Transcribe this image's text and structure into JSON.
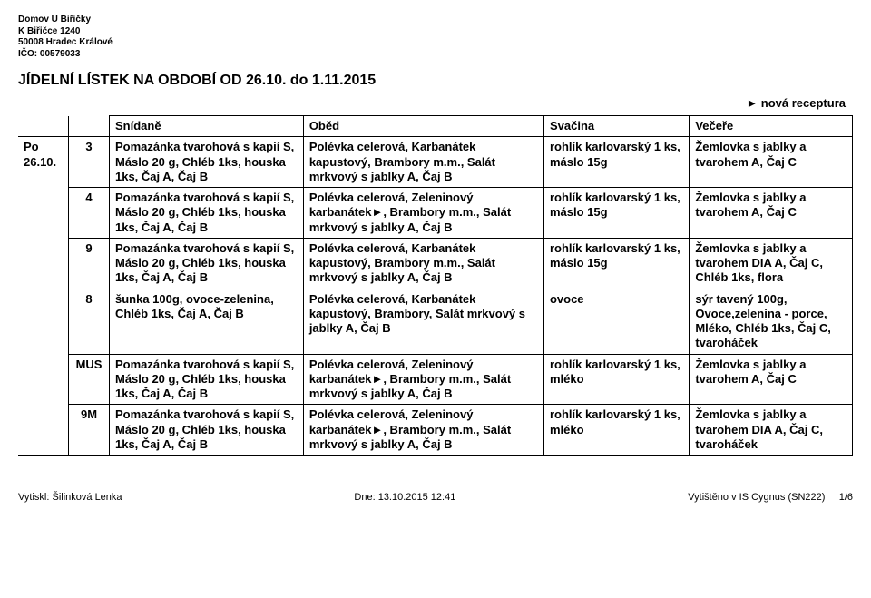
{
  "org": {
    "line1": "Domov U Biřičky",
    "line2": "K Biřičce 1240",
    "line3": "50008 Hradec Králové",
    "line4": "IČO: 00579033"
  },
  "title": "JÍDELNÍ LÍSTEK NA OBDOBÍ OD 26.10. do 1.11.2015",
  "legend": "► nová receptura",
  "headers": {
    "breakfast": "Snídaně",
    "lunch": "Oběd",
    "snack": "Svačina",
    "dinner": "Večeře"
  },
  "day": {
    "label_line1": "Po",
    "label_line2": "26.10.",
    "rows": [
      {
        "variant": "3",
        "breakfast": "Pomazánka tvarohová s kapií S, Máslo 20 g, Chléb 1ks, houska 1ks, Čaj A, Čaj B",
        "lunch": "Polévka celerová, Karbanátek kapustový, Brambory m.m., Salát mrkvový s jablky A, Čaj B",
        "snack": "rohlík karlovarský 1 ks, máslo 15g",
        "dinner": "Žemlovka s  jablky a tvarohem A, Čaj C"
      },
      {
        "variant": "4",
        "breakfast": "Pomazánka tvarohová s kapií S, Máslo 20 g, Chléb 1ks, houska 1ks, Čaj A, Čaj B",
        "lunch": "Polévka celerová, Zeleninový karbanátek►, Brambory m.m., Salát mrkvový s jablky A, Čaj B",
        "snack": "rohlík karlovarský 1 ks, máslo 15g",
        "dinner": "Žemlovka s  jablky a tvarohem A, Čaj C"
      },
      {
        "variant": "9",
        "breakfast": "Pomazánka tvarohová s kapií S, Máslo 20 g, Chléb 1ks, houska 1ks, Čaj A, Čaj B",
        "lunch": "Polévka celerová, Karbanátek kapustový, Brambory m.m., Salát mrkvový s jablky A, Čaj B",
        "snack": "rohlík karlovarský 1 ks, máslo 15g",
        "dinner": "Žemlovka s  jablky a tvarohem DIA A, Čaj C, Chléb 1ks, flora"
      },
      {
        "variant": "8",
        "breakfast": "šunka 100g, ovoce-zelenina, Chléb 1ks, Čaj A, Čaj B",
        "lunch": "Polévka celerová, Karbanátek kapustový, Brambory, Salát mrkvový s jablky A, Čaj B",
        "snack": "ovoce",
        "dinner": "sýr tavený 100g, Ovoce,zelenina - porce, Mléko, Chléb 1ks, Čaj C, tvaroháček"
      },
      {
        "variant": "MUS",
        "breakfast": "Pomazánka tvarohová s kapií S, Máslo 20 g, Chléb 1ks, houska 1ks, Čaj A, Čaj B",
        "lunch": "Polévka celerová, Zeleninový karbanátek►, Brambory m.m., Salát mrkvový s jablky A, Čaj B",
        "snack": "rohlík karlovarský 1 ks, mléko",
        "dinner": "Žemlovka s  jablky a tvarohem A, Čaj C"
      },
      {
        "variant": "9M",
        "breakfast": "Pomazánka tvarohová s kapií S, Máslo 20 g, Chléb 1ks, houska 1ks, Čaj A, Čaj B",
        "lunch": "Polévka celerová, Zeleninový karbanátek►, Brambory m.m., Salát mrkvový s jablky A, Čaj B",
        "snack": "rohlík karlovarský 1 ks, mléko",
        "dinner": "Žemlovka s  jablky a tvarohem DIA A, Čaj C, tvaroháček"
      }
    ]
  },
  "footer": {
    "left": "Vytiskl: Šilinková Lenka",
    "center": "Dne: 13.10.2015 12:41",
    "right": "Vytištěno v IS Cygnus (SN222)",
    "page": "1/6"
  }
}
